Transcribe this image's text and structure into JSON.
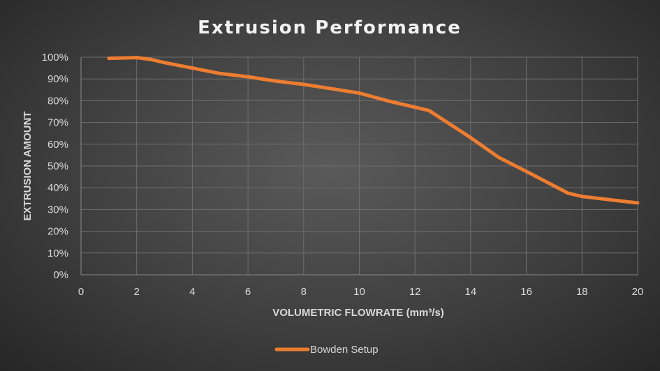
{
  "chart_data": {
    "type": "line",
    "title": "Extrusion Performance",
    "xlabel": "VOLUMETRIC FLOWRATE (mm³/s)",
    "ylabel": "EXTRUSION AMOUNT",
    "xlim": [
      0,
      20
    ],
    "ylim": [
      0,
      100
    ],
    "x_ticks": [
      "0",
      "2",
      "4",
      "6",
      "8",
      "10",
      "12",
      "14",
      "16",
      "18",
      "20"
    ],
    "y_ticks": [
      "0%",
      "10%",
      "20%",
      "30%",
      "40%",
      "50%",
      "60%",
      "70%",
      "80%",
      "90%",
      "100%"
    ],
    "grid": true,
    "legend_position": "bottom",
    "series": [
      {
        "name": "Bowden Setup",
        "color": "#ed7d31",
        "x": [
          1,
          2,
          2.5,
          3,
          4,
          5,
          6,
          7,
          8,
          9,
          10,
          11,
          12.5,
          14,
          15,
          16,
          17.5,
          18,
          19,
          20
        ],
        "y": [
          99.5,
          99.8,
          99,
          97.5,
          95,
          92.5,
          91,
          89,
          87.5,
          85.5,
          83.5,
          80,
          75.5,
          63,
          54,
          47.5,
          37.5,
          36,
          34.5,
          33
        ]
      }
    ]
  }
}
